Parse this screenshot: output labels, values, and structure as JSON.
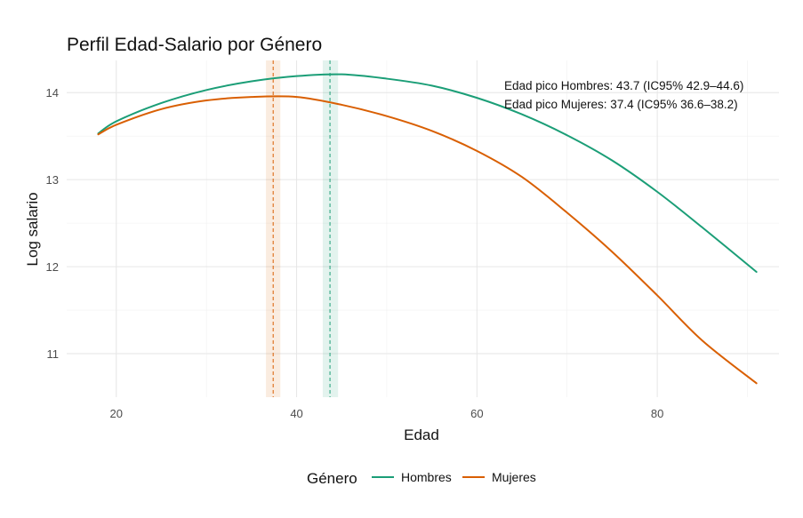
{
  "chart_data": {
    "type": "line",
    "title": "Perfil Edad-Salario por Género",
    "xlabel": "Edad",
    "ylabel": "Log salario",
    "xlim": [
      14.5,
      93.5
    ],
    "ylim": [
      10.5,
      14.37
    ],
    "xticks": [
      20,
      40,
      60,
      80
    ],
    "yticks": [
      11,
      12,
      13,
      14
    ],
    "grid": true,
    "legend": {
      "position": "bottom",
      "title": "Género",
      "entries": [
        "Hombres",
        "Mujeres"
      ]
    },
    "series": [
      {
        "name": "Hombres",
        "color": "#1b9e77",
        "x": [
          18,
          20,
          25,
          30,
          35,
          40,
          45,
          50,
          55,
          60,
          65,
          70,
          75,
          80,
          85,
          91
        ],
        "y": [
          13.53,
          13.67,
          13.88,
          14.03,
          14.13,
          14.19,
          14.21,
          14.16,
          14.08,
          13.94,
          13.75,
          13.51,
          13.22,
          12.86,
          12.45,
          11.94
        ]
      },
      {
        "name": "Mujeres",
        "color": "#d95f02",
        "x": [
          18,
          20,
          25,
          30,
          35,
          40,
          45,
          50,
          55,
          60,
          65,
          70,
          75,
          80,
          85,
          91
        ],
        "y": [
          13.52,
          13.63,
          13.81,
          13.91,
          13.95,
          13.95,
          13.86,
          13.73,
          13.56,
          13.33,
          13.03,
          12.62,
          12.17,
          11.67,
          11.15,
          10.66
        ]
      }
    ],
    "peaks": [
      {
        "series": "Hombres",
        "age": 43.7,
        "ci": [
          42.9,
          44.6
        ],
        "band_color": "#1b9e77",
        "label": "Edad pico Hombres: 43.7 (IC95% 42.9–44.6)"
      },
      {
        "series": "Mujeres",
        "age": 37.4,
        "ci": [
          36.6,
          38.2
        ],
        "band_color": "#d95f02",
        "label": "Edad pico Mujeres: 37.4 (IC95% 36.6–38.2)"
      }
    ]
  }
}
